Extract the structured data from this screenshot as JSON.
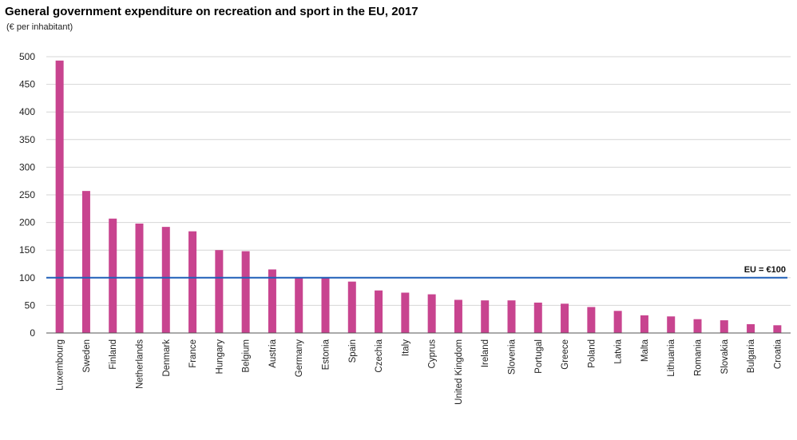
{
  "chart_data": {
    "type": "bar",
    "title": "General government expenditure on recreation and sport in the EU, 2017",
    "subtitle": "(€ per inhabitant)",
    "xlabel": "",
    "ylabel": "",
    "ylim": [
      0,
      500
    ],
    "yticks": [
      0,
      50,
      100,
      150,
      200,
      250,
      300,
      350,
      400,
      450,
      500
    ],
    "grid": true,
    "bar_color": "#c8448f",
    "reference_line": {
      "label": "EU = €100",
      "value": 100,
      "color": "#1f5fb8"
    },
    "categories": [
      "Luxembourg",
      "Sweden",
      "Finland",
      "Netherlands",
      "Denmark",
      "France",
      "Hungary",
      "Belgium",
      "Austria",
      "Germany",
      "Estonia",
      "Spain",
      "Czechia",
      "Italy",
      "Cyprus",
      "United Kingdom",
      "Ireland",
      "Slovenia",
      "Portugal",
      "Greece",
      "Poland",
      "Latvia",
      "Malta",
      "Lithuania",
      "Romania",
      "Slovakia",
      "Bulgaria",
      "Croatia"
    ],
    "values": [
      493,
      257,
      207,
      198,
      192,
      184,
      150,
      148,
      115,
      101,
      100,
      93,
      77,
      73,
      70,
      60,
      59,
      59,
      55,
      53,
      47,
      40,
      32,
      30,
      25,
      23,
      16,
      14
    ]
  }
}
